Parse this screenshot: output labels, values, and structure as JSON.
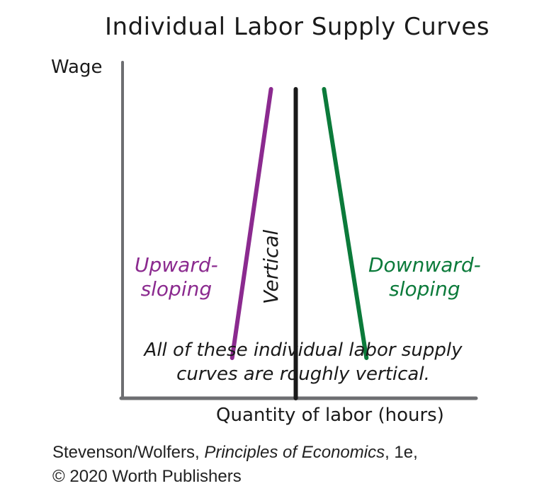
{
  "chart_data": {
    "type": "line",
    "title": "Individual Labor Supply Curves",
    "ylabel": "Wage",
    "xlabel": "Quantity of labor (hours)",
    "series": [
      {
        "name": "Upward-sloping",
        "label_lines": [
          "Upward-",
          "sloping"
        ],
        "color": "#8b2a8f",
        "points": [
          [
            0.31,
            0.12
          ],
          [
            0.42,
            0.92
          ]
        ]
      },
      {
        "name": "Vertical",
        "label_lines": [
          "Vertical"
        ],
        "color": "#1a1a1a",
        "points": [
          [
            0.49,
            0.0
          ],
          [
            0.49,
            0.92
          ]
        ]
      },
      {
        "name": "Downward-sloping",
        "label_lines": [
          "Downward-",
          "sloping"
        ],
        "color": "#0b7a3a",
        "points": [
          [
            0.57,
            0.92
          ],
          [
            0.69,
            0.12
          ]
        ]
      }
    ],
    "annotation": {
      "line1": "All of these individual labor supply",
      "line2_prefix": "curves are ",
      "line2_emph": "roughly",
      "line2_suffix": " vertical."
    },
    "xlim": [
      0,
      1
    ],
    "ylim": [
      0,
      1
    ],
    "grid": false,
    "axis_color": "#6d6e71"
  },
  "credit": {
    "line1_prefix": "Stevenson/Wolfers, ",
    "line1_title": "Principles of Economics",
    "line1_suffix": ", 1e,",
    "line2": "© 2020 Worth Publishers"
  }
}
